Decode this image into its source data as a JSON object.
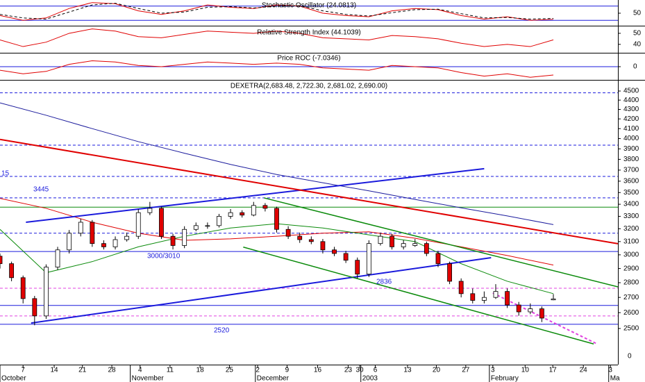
{
  "chart_data": [
    {
      "type": "line",
      "title": "Stochastic Oscillator (24.0813)",
      "xlim": [
        0,
        107.2
      ],
      "x": [
        0,
        4,
        8,
        12,
        16,
        20,
        24,
        28,
        32,
        36,
        40,
        44,
        48,
        52,
        56,
        60,
        64,
        68,
        72,
        76,
        80,
        84,
        88,
        92,
        96
      ],
      "series": [
        {
          "color": "#e00000",
          "style": "solid",
          "values": [
            40,
            20,
            30,
            70,
            95,
            90,
            60,
            45,
            60,
            85,
            75,
            70,
            85,
            80,
            50,
            40,
            35,
            60,
            70,
            65,
            40,
            25,
            35,
            20,
            24.08
          ]
        },
        {
          "color": "#000000",
          "style": "dashed",
          "values": [
            45,
            30,
            25,
            55,
            85,
            92,
            70,
            50,
            55,
            75,
            78,
            72,
            80,
            82,
            60,
            45,
            38,
            52,
            65,
            67,
            48,
            30,
            32,
            25,
            28
          ]
        }
      ],
      "ylim": [
        0,
        100
      ],
      "yticks": [
        50
      ],
      "levels": [
        80,
        20
      ],
      "level_color": "#1a1adc"
    },
    {
      "type": "line",
      "title": "Relative Strength Index (44.1039)",
      "xlim": [
        0,
        107.2
      ],
      "x": [
        0,
        4,
        8,
        12,
        16,
        20,
        24,
        28,
        32,
        36,
        40,
        44,
        48,
        52,
        56,
        60,
        64,
        68,
        72,
        76,
        80,
        84,
        88,
        92,
        96
      ],
      "series": [
        {
          "color": "#e00000",
          "style": "solid",
          "values": [
            44,
            38,
            42,
            50,
            54,
            52,
            47,
            46,
            49,
            52,
            51,
            50,
            52,
            50,
            46,
            45,
            44,
            48,
            47,
            45,
            41,
            38,
            40,
            38,
            44.1
          ]
        }
      ],
      "ylim": [
        33,
        55
      ],
      "yticks": [
        50,
        40
      ],
      "levels": [],
      "level_color": "#1a1adc"
    },
    {
      "type": "line",
      "title": "Price ROC (-7.0346)",
      "xlim": [
        0,
        107.2
      ],
      "x": [
        0,
        4,
        8,
        12,
        16,
        20,
        24,
        28,
        32,
        36,
        40,
        44,
        48,
        52,
        56,
        60,
        64,
        68,
        72,
        76,
        80,
        84,
        88,
        92,
        96
      ],
      "series": [
        {
          "color": "#e00000",
          "style": "solid",
          "values": [
            -3,
            -6,
            -4,
            2,
            5,
            4,
            1,
            0,
            2,
            4,
            3,
            2,
            3,
            2,
            -1,
            -2,
            -3,
            1,
            0,
            -1,
            -5,
            -8,
            -6,
            -9,
            -7.03
          ]
        }
      ],
      "ylim": [
        -10,
        10
      ],
      "yticks": [
        0
      ],
      "levels": [
        0
      ],
      "level_color": "#1a1adc"
    },
    {
      "type": "candlestick",
      "title": "DEXETRA(2,683.48, 2,722.30, 2,681.02, 2,690.00)",
      "xlim": [
        0,
        107.2
      ],
      "ylim": [
        2286,
        4610
      ],
      "log": true,
      "yticks": [
        2500,
        2600,
        2700,
        2800,
        2900,
        3000,
        3100,
        3200,
        3300,
        3400,
        3500,
        3600,
        3700,
        3800,
        3900,
        4000,
        4100,
        4200,
        4300,
        4400,
        4500
      ],
      "up_color": "#ffffff",
      "down_color": "#e00000",
      "x": [
        0,
        2,
        4,
        6,
        8,
        10,
        12,
        14,
        16,
        18,
        20,
        22,
        24,
        26,
        28,
        30,
        32,
        34,
        36,
        38,
        40,
        42,
        44,
        46,
        48,
        50,
        52,
        54,
        56,
        58,
        60,
        62,
        64,
        66,
        68,
        70,
        72,
        74,
        76,
        78,
        80,
        82,
        84,
        86,
        88,
        90,
        92,
        94,
        96
      ],
      "open": [
        2990,
        2935,
        2835,
        2692,
        2579,
        2910,
        3037,
        3165,
        3252,
        3085,
        3060,
        3115,
        3141,
        3330,
        3366,
        3141,
        3070,
        3195,
        3225,
        3225,
        3300,
        3330,
        3310,
        3390,
        3366,
        3195,
        3141,
        3115,
        3100,
        3037,
        3010,
        2960,
        2860,
        3085,
        3141,
        3060,
        3070,
        3085,
        3010,
        2935,
        2810,
        2725,
        2680,
        2700,
        2740,
        2650,
        2605,
        2625,
        2683.48
      ],
      "high": [
        3010,
        2950,
        2850,
        2710,
        2930,
        3060,
        3190,
        3280,
        3270,
        3110,
        3140,
        3170,
        3360,
        3420,
        3380,
        3160,
        3220,
        3250,
        3250,
        3320,
        3360,
        3350,
        3420,
        3410,
        3380,
        3220,
        3170,
        3140,
        3120,
        3060,
        3030,
        2980,
        3110,
        3170,
        3160,
        3110,
        3120,
        3100,
        3030,
        2950,
        2830,
        2760,
        2740,
        2790,
        2760,
        2670,
        2660,
        2640,
        2722.3
      ],
      "low": [
        2900,
        2810,
        2660,
        2520,
        2560,
        2890,
        3010,
        3140,
        3060,
        3040,
        3040,
        3100,
        3120,
        3310,
        3120,
        3040,
        3050,
        3180,
        3200,
        3210,
        3280,
        3290,
        3300,
        3340,
        3170,
        3120,
        3090,
        3080,
        3010,
        2990,
        2940,
        2830,
        2840,
        3070,
        3040,
        3040,
        3060,
        2990,
        2910,
        2790,
        2700,
        2660,
        2660,
        2690,
        2630,
        2580,
        2590,
        2540,
        2681.02
      ],
      "close": [
        2935,
        2835,
        2692,
        2579,
        2910,
        3037,
        3165,
        3252,
        3085,
        3060,
        3115,
        3141,
        3330,
        3366,
        3141,
        3070,
        3195,
        3225,
        3225,
        3300,
        3330,
        3310,
        3390,
        3366,
        3195,
        3141,
        3115,
        3100,
        3037,
        3010,
        2960,
        2860,
        3085,
        3141,
        3060,
        3085,
        3085,
        3010,
        2935,
        2810,
        2725,
        2680,
        2700,
        2740,
        2650,
        2605,
        2625,
        2565,
        2690
      ],
      "overlays": [
        {
          "color": "#1a1a9c",
          "x": [
            0,
            8,
            16,
            24,
            32,
            40,
            48,
            56,
            64,
            72,
            80,
            88,
            96
          ],
          "values": [
            4370,
            4238,
            4100,
            3970,
            3858,
            3752,
            3660,
            3586,
            3515,
            3441,
            3370,
            3303,
            3233
          ]
        },
        {
          "color": "#e00000",
          "x": [
            0,
            8,
            16,
            24,
            32,
            40,
            48,
            56,
            64,
            72,
            80,
            88,
            96
          ],
          "values": [
            3450,
            3366,
            3252,
            3165,
            3110,
            3121,
            3141,
            3165,
            3176,
            3126,
            3060,
            2995,
            2925
          ]
        },
        {
          "color": "#0a8a0a",
          "x": [
            0,
            8,
            16,
            24,
            32,
            40,
            48,
            56,
            64,
            72,
            80,
            88,
            96
          ],
          "values": [
            3195,
            2870,
            2950,
            3060,
            3141,
            3206,
            3240,
            3206,
            3152,
            3100,
            2935,
            2810,
            2725
          ]
        }
      ],
      "trendlines": [
        {
          "color": "#1a1adc",
          "style": "solid",
          "x": [
            4.5,
            84
          ],
          "y": [
            3252,
            3713
          ]
        },
        {
          "color": "#1a1adc",
          "style": "solid",
          "x": [
            5.4,
            85.2
          ],
          "y": [
            2534,
            2979
          ]
        },
        {
          "color": "#e00000",
          "style": "solid",
          "x": [
            0,
            107.2
          ],
          "y": [
            3992,
            3084
          ]
        },
        {
          "color": "#0a8a0a",
          "style": "solid",
          "x": [
            45.8,
            107.2
          ],
          "y": [
            3454,
            2771
          ]
        },
        {
          "color": "#0a8a0a",
          "style": "solid",
          "x": [
            42.2,
            103
          ],
          "y": [
            3058,
            2406
          ]
        },
        {
          "color": "#e040e0",
          "style": "dashed",
          "x": [
            85.5,
            103.6
          ],
          "y": [
            2729,
            2406
          ]
        }
      ],
      "levels": [
        {
          "value": 4480,
          "color": "#1a1adc",
          "style": "dashed"
        },
        {
          "value": 3936,
          "color": "#1a1adc",
          "style": "dashed"
        },
        {
          "value": 3643,
          "color": "#1a1adc",
          "style": "dashed"
        },
        {
          "value": 3454,
          "color": "#1a1adc",
          "style": "dashed"
        },
        {
          "value": 3376,
          "color": "#0a8a0a",
          "style": "solid"
        },
        {
          "value": 3165,
          "color": "#1a1adc",
          "style": "dashed"
        },
        {
          "value": 3025,
          "color": "#1a1adc",
          "style": "solid"
        },
        {
          "value": 2762,
          "color": "#e040e0",
          "style": "dashed"
        },
        {
          "value": 2647,
          "color": "#1a1adc",
          "style": "solid"
        },
        {
          "value": 2579,
          "color": "#e040e0",
          "style": "dashed"
        },
        {
          "value": 2526,
          "color": "#1a1adc",
          "style": "solid"
        }
      ],
      "annotations": [
        "15",
        "3445",
        "3000/3010",
        "2836",
        "2520",
        "0"
      ],
      "xticks": [
        {
          "value": 4,
          "label": "7"
        },
        {
          "value": 9.4,
          "label": "14"
        },
        {
          "value": 14.3,
          "label": "21"
        },
        {
          "value": 19.4,
          "label": "28"
        },
        {
          "value": 24.3,
          "label": "4"
        },
        {
          "value": 29.5,
          "label": "11"
        },
        {
          "value": 34.7,
          "label": "18"
        },
        {
          "value": 39.8,
          "label": "25"
        },
        {
          "value": 44.7,
          "label": "2"
        },
        {
          "value": 49.8,
          "label": "9"
        },
        {
          "value": 55.1,
          "label": "16"
        },
        {
          "value": 60.4,
          "label": "23"
        },
        {
          "value": 62.4,
          "label": "30"
        },
        {
          "value": 65.1,
          "label": "6"
        },
        {
          "value": 70.7,
          "label": "13"
        },
        {
          "value": 75.7,
          "label": "20"
        },
        {
          "value": 80.8,
          "label": "27"
        },
        {
          "value": 85.5,
          "label": "3"
        },
        {
          "value": 91.1,
          "label": "10"
        },
        {
          "value": 95.9,
          "label": "17"
        },
        {
          "value": 101.2,
          "label": "24"
        },
        {
          "value": 105.9,
          "label": "3"
        }
      ],
      "month_labels": [
        {
          "value": 0,
          "label": "October"
        },
        {
          "value": 22.6,
          "label": "November"
        },
        {
          "value": 44.3,
          "label": "December"
        },
        {
          "value": 62.6,
          "label": "2003"
        },
        {
          "value": 84.9,
          "label": "February"
        },
        {
          "value": 105.6,
          "label": "Ma"
        }
      ]
    }
  ]
}
